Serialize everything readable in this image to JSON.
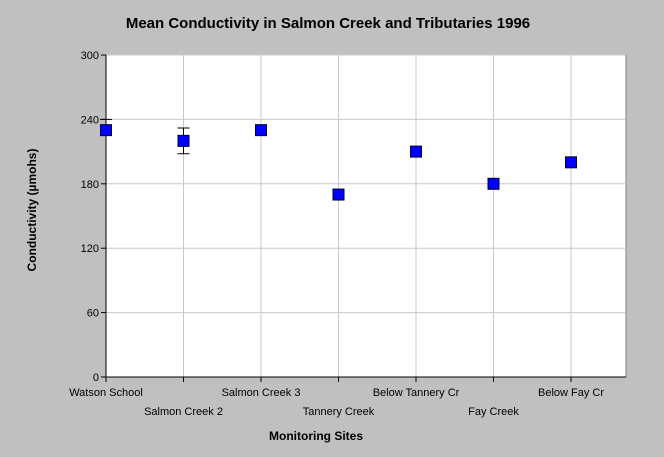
{
  "chart_data": {
    "type": "scatter",
    "title": "Mean Conductivity in Salmon Creek and Tributaries 1996",
    "xlabel": "Monitoring Sites",
    "ylabel": "Conductivity (µmohs)",
    "ylim": [
      0,
      300
    ],
    "yticks": [
      "0",
      "60",
      "120",
      "180",
      "240",
      "300"
    ],
    "grid": true,
    "categories": [
      "Watson School",
      "Salmon Creek 2",
      "Salmon Creek 3",
      "Tannery Creek",
      "Below Tannery Cr",
      "Fay Creek",
      "Below Fay Cr"
    ],
    "values": [
      230,
      220,
      230,
      170,
      210,
      180,
      200
    ],
    "error_high": [
      240,
      232,
      null,
      null,
      null,
      182,
      null
    ],
    "error_low": [
      null,
      208,
      null,
      null,
      null,
      null,
      null
    ],
    "marker_color": "#0000ff",
    "plot_background": "#ffffff",
    "page_background": "#c0c0c0"
  }
}
